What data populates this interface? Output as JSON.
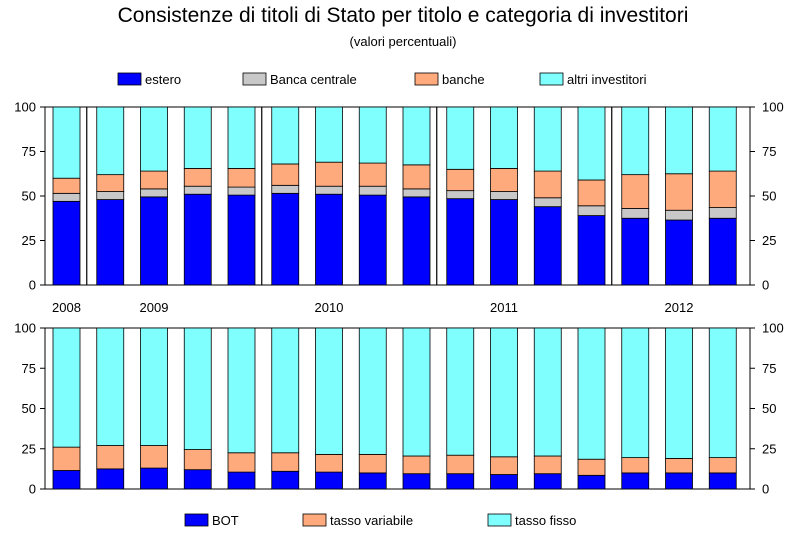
{
  "title": "Consistenze di titoli di Stato per titolo e categoria di investitori",
  "subtitle": "(valori percentuali)",
  "chart_data": [
    {
      "type": "bar",
      "stacked": true,
      "name": "top",
      "ylim": [
        0,
        100
      ],
      "yticks": [
        0,
        25,
        50,
        75,
        100
      ],
      "legend_position": "top",
      "year_labels": [
        {
          "label": "2008",
          "at_bar": 0
        },
        {
          "label": "2009",
          "at_bar": 2
        },
        {
          "label": "2010",
          "at_bar": 6
        },
        {
          "label": "2011",
          "at_bar": 10
        },
        {
          "label": "2012",
          "at_bar": 14
        }
      ],
      "year_dividers_after_bar": [
        0,
        4,
        8,
        12
      ],
      "series": [
        {
          "name": "estero",
          "color": "#0000ff",
          "values": [
            47,
            48,
            49.5,
            51,
            50.5,
            51.5,
            51,
            50.5,
            49.5,
            48.5,
            48,
            44,
            39,
            37.5,
            36.5,
            37.5
          ]
        },
        {
          "name": "Banca centrale",
          "color": "#c8c8c8",
          "values": [
            4.5,
            4.5,
            4.5,
            4.5,
            4.5,
            4.5,
            4.5,
            5,
            4.5,
            4.5,
            4.5,
            5,
            5.5,
            5.5,
            5.5,
            6
          ]
        },
        {
          "name": "banche",
          "color": "#ffaa7d",
          "values": [
            8.5,
            9.5,
            10,
            10,
            10.5,
            12,
            13.5,
            13,
            13.5,
            12,
            13,
            15,
            14.5,
            19,
            20.5,
            20.5
          ]
        },
        {
          "name": "altri investitori",
          "color": "#80ffff",
          "values": [
            40,
            38,
            36,
            34.5,
            34.5,
            32,
            31,
            31.5,
            32.5,
            35,
            34.5,
            36,
            41,
            38,
            37.5,
            36
          ]
        }
      ]
    },
    {
      "type": "bar",
      "stacked": true,
      "name": "bottom",
      "ylim": [
        0,
        100
      ],
      "yticks": [
        0,
        25,
        50,
        75,
        100
      ],
      "legend_position": "bottom",
      "series": [
        {
          "name": "BOT",
          "color": "#0000ff",
          "values": [
            11.5,
            12.5,
            13,
            12,
            10.5,
            11,
            10.5,
            10,
            9.5,
            9.5,
            9,
            9.5,
            8.5,
            10,
            10,
            10
          ]
        },
        {
          "name": "tasso variabile",
          "color": "#ffaa7d",
          "values": [
            14.5,
            14.5,
            14,
            12.5,
            12,
            11.5,
            11,
            11.5,
            11,
            11.5,
            11,
            11,
            10,
            9.5,
            9,
            9.5
          ]
        },
        {
          "name": "tasso fisso",
          "color": "#80ffff",
          "values": [
            74,
            73,
            73,
            75.5,
            77.5,
            77.5,
            78.5,
            78.5,
            79.5,
            79,
            80,
            79.5,
            81.5,
            80.5,
            81,
            80.5
          ]
        }
      ]
    }
  ]
}
